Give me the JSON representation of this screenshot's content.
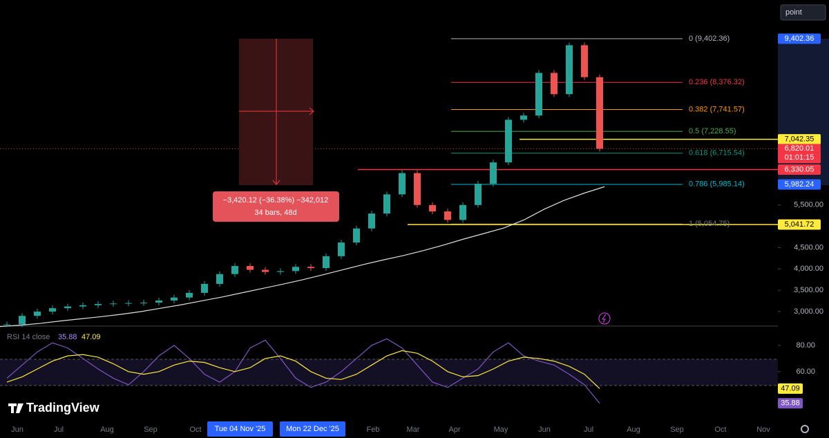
{
  "toolbar": {
    "mode": "point"
  },
  "chart_data": {
    "type": "candlestick",
    "closes": [
      2700,
      2900,
      3000,
      3080,
      3120,
      3150,
      3180,
      3190,
      3200,
      3210,
      3260,
      3330,
      3440,
      3650,
      3880,
      4070,
      3980,
      3930,
      3950,
      4050,
      4020,
      4300,
      4620,
      4950,
      5300,
      5750,
      6250,
      5500,
      5350,
      5150,
      5500,
      6000,
      6500,
      7500,
      7600,
      8600,
      8100,
      9250,
      8500,
      6820.01
    ],
    "moving_average": [
      2650,
      2680,
      2724,
      2780,
      2830,
      2880,
      2935,
      3000,
      3080,
      3160,
      3250,
      3340,
      3440,
      3540,
      3640,
      3745,
      3860,
      3980,
      4100,
      4210,
      4312,
      4430,
      4560,
      4700,
      4830,
      4960,
      5150,
      5400,
      5610,
      5780,
      5930
    ],
    "ylim": [
      2660,
      10310
    ],
    "yticks": [
      {
        "value": 3000,
        "label": "3,000.00"
      },
      {
        "value": 3500,
        "label": "3,500.00"
      },
      {
        "value": 4000,
        "label": "4,000.00"
      },
      {
        "value": 4500,
        "label": "4,500.00"
      },
      {
        "value": 5500,
        "label": "5,500.00"
      }
    ],
    "x_labels": [
      "Jun",
      "Jul",
      "Aug",
      "Sep",
      "Oct",
      "Feb",
      "Mar",
      "Apr",
      "May",
      "Jun",
      "Jul",
      "Aug",
      "Sep",
      "Oct",
      "Nov"
    ],
    "fib_levels": [
      {
        "label": "0 (9,402.36)",
        "value": 9402.36,
        "color": "#b2b5be"
      },
      {
        "label": "0.236 (8,376.32)",
        "value": 8376.32,
        "color": "#f23645"
      },
      {
        "label": "0.382 (7,741.57)",
        "value": 7741.57,
        "color": "#ff9800"
      },
      {
        "label": "0.5 (7,228.55)",
        "value": 7228.55,
        "color": "#4caf50"
      },
      {
        "label": "0.618 (6,715.54)",
        "value": 6715.54,
        "color": "#089981"
      },
      {
        "label": "0.786 (5,985.14)",
        "value": 5985.14,
        "color": "#00bcd4"
      },
      {
        "label": "1 (5,054.75)",
        "value": 5054.75,
        "color": "#787b86"
      }
    ],
    "price_tags": [
      {
        "value": 9402.36,
        "label": "9,402.36",
        "color": "#2962ff"
      },
      {
        "value": 7042.35,
        "label": "7,042.35",
        "color": "#ffeb3b"
      },
      {
        "value": 6820.01,
        "label": "6,820.01",
        "color": "#f23645"
      },
      {
        "value": 6330.05,
        "label": "6,330.05",
        "color": "#f23645"
      },
      {
        "value": 5982.24,
        "label": "5,982.24",
        "color": "#2962ff"
      },
      {
        "value": 5041.72,
        "label": "5,041.72",
        "color": "#ffeb3b"
      }
    ],
    "countdown": "01:01:15",
    "measure": {
      "line1": "−3,420.12 (−36.38%) −342,012",
      "line2": "34 bars, 48d"
    },
    "date_tags": [
      "Tue 04 Nov '25",
      "Mon 22 Dec '25"
    ]
  },
  "rsi": {
    "title": "RSI 14 close",
    "values": [
      55,
      65,
      75,
      82,
      78,
      70,
      62,
      55,
      50,
      60,
      72,
      80,
      70,
      58,
      52,
      60,
      78,
      84,
      70,
      55,
      48,
      52,
      60,
      70,
      80,
      85,
      78,
      65,
      52,
      48,
      55,
      62,
      75,
      82,
      72,
      68,
      65,
      58,
      50,
      35.88
    ],
    "ma": [
      52,
      56,
      62,
      68,
      72,
      73,
      71,
      66,
      60,
      58,
      60,
      65,
      68,
      67,
      63,
      60,
      63,
      70,
      72,
      68,
      60,
      55,
      54,
      58,
      65,
      72,
      76,
      74,
      68,
      60,
      56,
      57,
      62,
      68,
      71,
      70,
      68,
      64,
      58,
      47.09
    ],
    "ylim": [
      21,
      92.6
    ],
    "yticks": [
      {
        "value": 80,
        "label": "80.00"
      },
      {
        "value": 60,
        "label": "60.00"
      }
    ]
  },
  "brand": "TradingView"
}
